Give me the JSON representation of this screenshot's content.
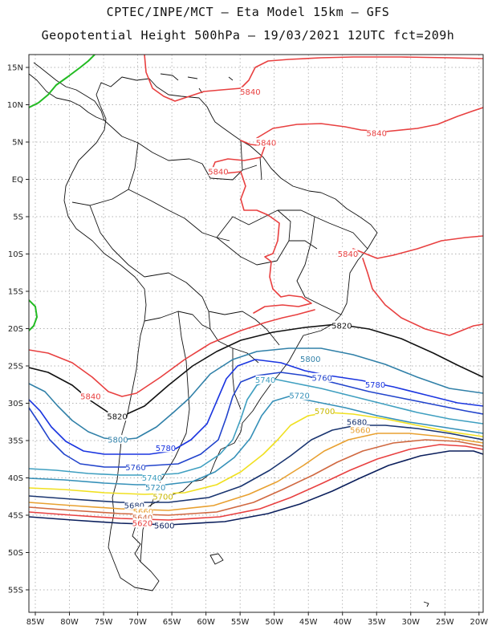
{
  "header": {
    "line1": "CPTEC/INPE/MCT –  Eta Model 15km – GFS",
    "line2": "Geopotential Height 500hPa – 19/03/2021 12UTC fct=209h"
  },
  "axes": {
    "lat_ticks": [
      "15N",
      "10N",
      "5N",
      "EQ",
      "5S",
      "10S",
      "15S",
      "20S",
      "25S",
      "30S",
      "35S",
      "40S",
      "45S",
      "50S",
      "55S"
    ],
    "lon_ticks": [
      "85W",
      "80W",
      "75W",
      "70W",
      "65W",
      "60W",
      "55W",
      "50W",
      "45W",
      "40W",
      "35W",
      "30W",
      "25W",
      "20W"
    ],
    "lat_range": [
      -60,
      17
    ],
    "lon_range": [
      -86,
      -20
    ],
    "grid": true
  },
  "colors": {
    "c5600": "#0b1f5c",
    "c5620": "#e84040",
    "c5640": "#d06840",
    "c5660": "#e8a030",
    "c5680": "#1a3570",
    "c5700": "#f0e020",
    "c5720": "#3590b8",
    "c5740": "#3f9fc0",
    "c5760": "#2244cc",
    "c5780": "#1a35e0",
    "c5800": "#3080a8",
    "c5820": "#111111",
    "c5840": "#e84040",
    "itcz": "#22bb22",
    "coast": "#111111"
  },
  "contour_labels": [
    {
      "text": "5840",
      "lon": -53.5,
      "lat": 11.7,
      "color": "#e84040"
    },
    {
      "text": "5840",
      "lon": -35.0,
      "lat": 6.2,
      "color": "#e84040"
    },
    {
      "text": "5840",
      "lon": -51.2,
      "lat": 4.9,
      "color": "#e84040"
    },
    {
      "text": "5840",
      "lon": -58.2,
      "lat": 1.0,
      "color": "#e84040"
    },
    {
      "text": "5840",
      "lon": -39.2,
      "lat": -10.0,
      "color": "#e84040"
    },
    {
      "text": "5820",
      "lon": -40.1,
      "lat": -19.6,
      "color": "#111111"
    },
    {
      "text": "5800",
      "lon": -44.7,
      "lat": -24.1,
      "color": "#3080a8"
    },
    {
      "text": "5760",
      "lon": -43.0,
      "lat": -26.6,
      "color": "#2244cc"
    },
    {
      "text": "5780",
      "lon": -35.2,
      "lat": -27.5,
      "color": "#1a35e0"
    },
    {
      "text": "5740",
      "lon": -51.3,
      "lat": -26.9,
      "color": "#3f9fc0"
    },
    {
      "text": "5720",
      "lon": -46.3,
      "lat": -29.0,
      "color": "#3590b8"
    },
    {
      "text": "5700",
      "lon": -42.6,
      "lat": -31.1,
      "color": "#c8b800"
    },
    {
      "text": "5680",
      "lon": -37.9,
      "lat": -32.5,
      "color": "#1a3570"
    },
    {
      "text": "5660",
      "lon": -37.4,
      "lat": -33.6,
      "color": "#e8a030"
    },
    {
      "text": "5840",
      "lon": -76.9,
      "lat": -29.1,
      "color": "#e84040"
    },
    {
      "text": "5820",
      "lon": -73.0,
      "lat": -31.8,
      "color": "#111111"
    },
    {
      "text": "5800",
      "lon": -72.9,
      "lat": -34.9,
      "color": "#3080a8"
    },
    {
      "text": "5780",
      "lon": -65.9,
      "lat": -36.0,
      "color": "#1a35e0"
    },
    {
      "text": "5760",
      "lon": -70.3,
      "lat": -38.6,
      "color": "#2244cc"
    },
    {
      "text": "5740",
      "lon": -67.9,
      "lat": -40.0,
      "color": "#3f9fc0"
    },
    {
      "text": "5720",
      "lon": -67.4,
      "lat": -41.3,
      "color": "#3590b8"
    },
    {
      "text": "5700",
      "lon": -66.3,
      "lat": -42.5,
      "color": "#c8b800"
    },
    {
      "text": "5680",
      "lon": -70.5,
      "lat": -43.7,
      "color": "#1a3570"
    },
    {
      "text": "5660",
      "lon": -69.2,
      "lat": -44.5,
      "color": "#e8a030"
    },
    {
      "text": "5640",
      "lon": -69.3,
      "lat": -45.3,
      "color": "#d06840"
    },
    {
      "text": "5620",
      "lon": -69.3,
      "lat": -46.1,
      "color": "#e84040"
    },
    {
      "text": "5600",
      "lon": -66.1,
      "lat": -46.4,
      "color": "#0b1f5c"
    }
  ]
}
